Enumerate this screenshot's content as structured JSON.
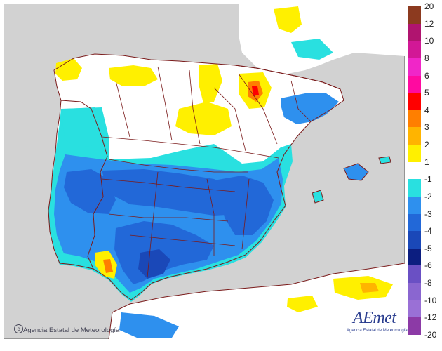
{
  "legend": {
    "ticks": [
      "20",
      "12",
      "10",
      "8",
      "6",
      "5",
      "4",
      "3",
      "2",
      "1",
      "-1",
      "-2",
      "-3",
      "-4",
      "-5",
      "-6",
      "-8",
      "-10",
      "-12",
      "-20"
    ],
    "colors": {
      "above_20_12": "#8c3a1f",
      "12_10": "#b0146f",
      "10_8": "#d21896",
      "8_6": "#f026c8",
      "6_5": "#ff0aa0",
      "5_4": "#ff0000",
      "4_3": "#ff7f00",
      "3_2": "#ffb400",
      "2_1": "#fff000",
      "neutral": "#ffffff",
      "m1_m2": "#29e0e0",
      "m2_m3": "#2e90ee",
      "m3_m4": "#2268d8",
      "m4_m5": "#1a48b8",
      "m5_m6": "#0c1e80",
      "m6_m8": "#6a50c4",
      "m8_m10": "#8a66d0",
      "m10_m12": "#9a70d6",
      "m12_m20": "#8c3aa6"
    }
  },
  "map_colors": {
    "sea": "#d2d2d2",
    "land_neutral": "#ffffff",
    "border": "#7a1a1a"
  },
  "credit": "Agencia Estatal de Meteorología",
  "logo": {
    "word": "AEmet",
    "subtitle": "Agencia Estatal de Meteorología"
  }
}
